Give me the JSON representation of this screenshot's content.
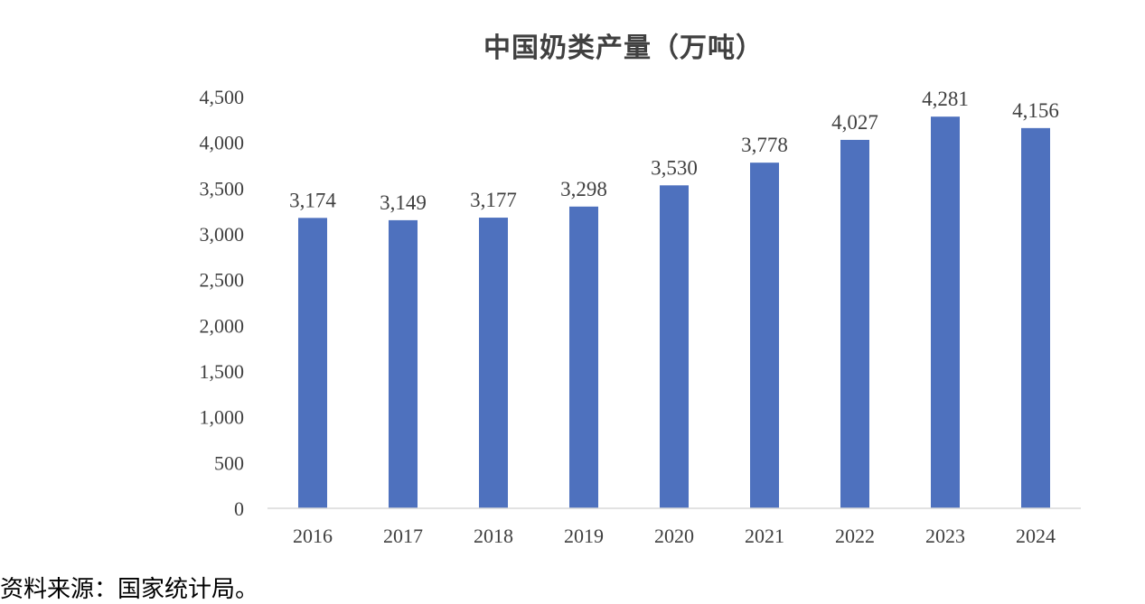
{
  "chart_data": {
    "type": "bar",
    "title": "中国奶类产量（万吨）",
    "categories": [
      "2016",
      "2017",
      "2018",
      "2019",
      "2020",
      "2021",
      "2022",
      "2023",
      "2024"
    ],
    "values": [
      3174,
      3149,
      3177,
      3298,
      3530,
      3778,
      4027,
      4281,
      4156
    ],
    "data_labels": [
      "3,174",
      "3,149",
      "3,177",
      "3,298",
      "3,530",
      "3,778",
      "4,027",
      "4,281",
      "4,156"
    ],
    "y_ticks": [
      "0",
      "500",
      "1,000",
      "1,500",
      "2,000",
      "2,500",
      "3,000",
      "3,500",
      "4,000",
      "4,500"
    ],
    "ylim": [
      0,
      4500
    ],
    "xlabel": "",
    "ylabel": "",
    "grid": false,
    "legend": "none",
    "bar_color": "#4E71BE"
  },
  "source_note": "资料来源：国家统计局。"
}
